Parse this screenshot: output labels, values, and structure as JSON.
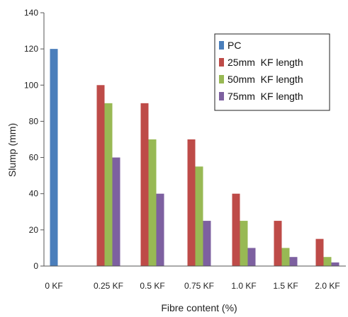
{
  "chart_data": {
    "type": "bar",
    "xlabel": "Fibre content (%)",
    "ylabel": "Slump (mm)",
    "ylim": [
      0,
      140
    ],
    "yticks": [
      0,
      20,
      40,
      60,
      80,
      100,
      120,
      140
    ],
    "grid": false,
    "legend_position": "top-right",
    "categories": [
      "0 KF",
      "0.25 KF",
      "0.5 KF",
      "0.75 KF",
      "1.0 KF",
      "1.5 KF",
      "2.0 KF"
    ],
    "series": [
      {
        "name": "PC",
        "color": "#4a7ebb",
        "values": [
          120,
          null,
          null,
          null,
          null,
          null,
          null
        ]
      },
      {
        "name": "25mm  KF length",
        "color": "#be4b48",
        "values": [
          null,
          100,
          90,
          70,
          40,
          25,
          15
        ]
      },
      {
        "name": "50mm  KF length",
        "color": "#98b954",
        "values": [
          null,
          90,
          70,
          55,
          25,
          10,
          5
        ]
      },
      {
        "name": "75mm  KF length",
        "color": "#7d60a0",
        "values": [
          null,
          60,
          40,
          25,
          10,
          5,
          2
        ]
      }
    ]
  }
}
